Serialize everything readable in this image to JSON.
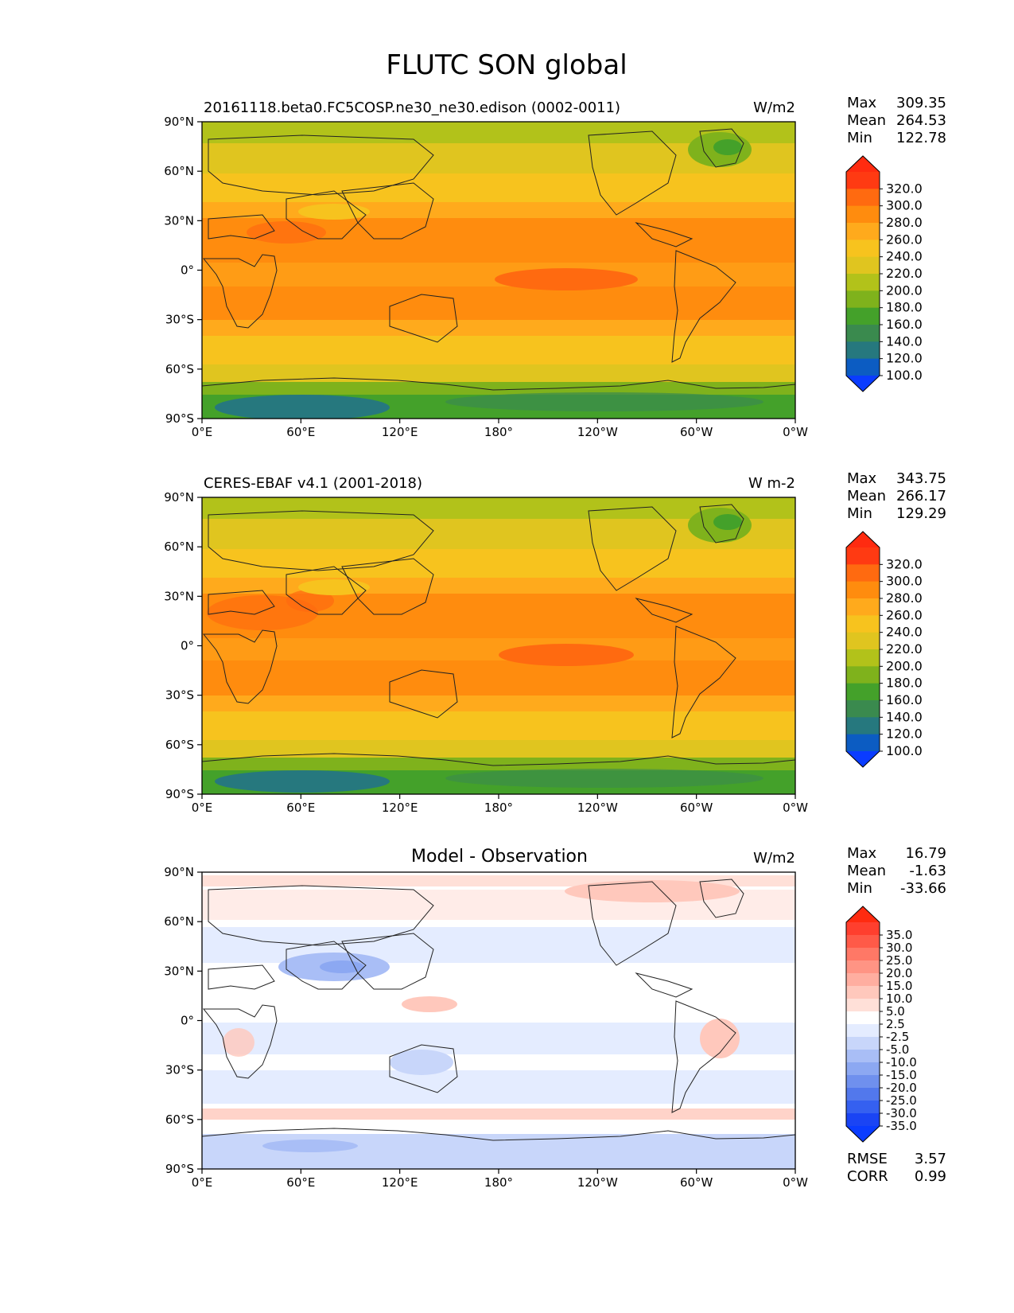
{
  "figure_title": "FLUTC SON global",
  "lat_ticks": [
    "90°N",
    "60°N",
    "30°N",
    "0°",
    "30°S",
    "60°S",
    "90°S"
  ],
  "lon_ticks": [
    "0°E",
    "60°E",
    "120°E",
    "180°",
    "120°W",
    "60°W",
    "0°W"
  ],
  "panels": [
    {
      "title_left": "20161118.beta0.FC5COSP.ne30_ne30.edison (0002-0011)",
      "title_center": "",
      "units": "W/m2",
      "stats": {
        "labels": [
          "Max",
          "Mean",
          "Min"
        ],
        "values": [
          "309.35",
          "264.53",
          "122.78"
        ]
      },
      "colorbar": {
        "labels": [
          "320.0",
          "300.0",
          "280.0",
          "260.0",
          "240.0",
          "220.0",
          "200.0",
          "180.0",
          "160.0",
          "140.0",
          "120.0",
          "100.0"
        ],
        "colors": [
          "#ff3a12",
          "#ff6a10",
          "#ff8c0e",
          "#ffaa1c",
          "#f7c31e",
          "#e0c51f",
          "#b2c21a",
          "#7fb21c",
          "#44a12a",
          "#3a8a4e",
          "#26787e",
          "#0c5cc2"
        ],
        "overflow_top": "#ff2b10",
        "underflow_bottom": "#0a3cff"
      }
    },
    {
      "title_left": "CERES-EBAF v4.1 (2001-2018)",
      "title_center": "",
      "units": "W m-2",
      "stats": {
        "labels": [
          "Max",
          "Mean",
          "Min"
        ],
        "values": [
          "343.75",
          "266.17",
          "129.29"
        ]
      },
      "colorbar": {
        "labels": [
          "320.0",
          "300.0",
          "280.0",
          "260.0",
          "240.0",
          "220.0",
          "200.0",
          "180.0",
          "160.0",
          "140.0",
          "120.0",
          "100.0"
        ],
        "colors": [
          "#ff3a12",
          "#ff6a10",
          "#ff8c0e",
          "#ffaa1c",
          "#f7c31e",
          "#e0c51f",
          "#b2c21a",
          "#7fb21c",
          "#44a12a",
          "#3a8a4e",
          "#26787e",
          "#0c5cc2"
        ],
        "overflow_top": "#ff2b10",
        "underflow_bottom": "#0a3cff"
      }
    },
    {
      "title_left": "",
      "title_center": "Model - Observation",
      "units": "W/m2",
      "stats": {
        "labels": [
          "Max",
          "Mean",
          "Min"
        ],
        "values": [
          "16.79",
          "-1.63",
          "-33.66"
        ]
      },
      "colorbar": {
        "labels": [
          "35.0",
          "30.0",
          "25.0",
          "20.0",
          "15.0",
          "10.0",
          "5.0",
          "2.5",
          "-2.5",
          "-5.0",
          "-10.0",
          "-15.0",
          "-20.0",
          "-25.0",
          "-30.0",
          "-35.0"
        ],
        "colors": [
          "#ff3f2e",
          "#ff5a48",
          "#ff7866",
          "#ff9484",
          "#ffaea0",
          "#ffc8bc",
          "#ffe0d8",
          "#ffffff",
          "#e4ecff",
          "#c8d6fa",
          "#a9bef6",
          "#8ca8f2",
          "#6f90ee",
          "#5278ec",
          "#3560f0",
          "#1a44f4"
        ],
        "overflow_top": "#ff2b10",
        "underflow_bottom": "#0a3cff"
      },
      "metrics": {
        "labels": [
          "RMSE",
          "CORR"
        ],
        "values": [
          "3.57",
          "0.99"
        ]
      }
    }
  ],
  "chart_data": [
    {
      "type": "heatmap",
      "title": "20161118.beta0.FC5COSP.ne30_ne30.edison (0002-0011)",
      "variable": "FLUTC",
      "season": "SON",
      "units": "W/m2",
      "x": {
        "range": [
          0,
          360
        ],
        "ticks": [
          "0°E",
          "60°E",
          "120°E",
          "180°",
          "120°W",
          "60°W",
          "0°W"
        ]
      },
      "y": {
        "range": [
          -90,
          90
        ],
        "ticks": [
          "90°N",
          "60°N",
          "30°N",
          "0°",
          "30°S",
          "60°S",
          "90°S"
        ]
      },
      "contour_levels": [
        100,
        120,
        140,
        160,
        180,
        200,
        220,
        240,
        260,
        280,
        300,
        320
      ],
      "stats": {
        "max": 309.35,
        "mean": 264.53,
        "min": 122.78
      },
      "zonal_profile": {
        "lat": [
          90,
          75,
          60,
          45,
          30,
          15,
          0,
          -15,
          -30,
          -45,
          -60,
          -75,
          -90
        ],
        "value": [
          195,
          215,
          235,
          255,
          280,
          290,
          285,
          290,
          275,
          250,
          225,
          170,
          150
        ]
      },
      "colormap": "blue-green-yellow-orange-red",
      "legend": "right"
    },
    {
      "type": "heatmap",
      "title": "CERES-EBAF v4.1 (2001-2018)",
      "variable": "FLUTC",
      "season": "SON",
      "units": "W m-2",
      "x": {
        "range": [
          0,
          360
        ],
        "ticks": [
          "0°E",
          "60°E",
          "120°E",
          "180°",
          "120°W",
          "60°W",
          "0°W"
        ]
      },
      "y": {
        "range": [
          -90,
          90
        ],
        "ticks": [
          "90°N",
          "60°N",
          "30°N",
          "0°",
          "30°S",
          "60°S",
          "90°S"
        ]
      },
      "contour_levels": [
        100,
        120,
        140,
        160,
        180,
        200,
        220,
        240,
        260,
        280,
        300,
        320
      ],
      "stats": {
        "max": 343.75,
        "mean": 266.17,
        "min": 129.29
      },
      "zonal_profile": {
        "lat": [
          90,
          75,
          60,
          45,
          30,
          15,
          0,
          -15,
          -30,
          -45,
          -60,
          -75,
          -90
        ],
        "value": [
          195,
          215,
          238,
          258,
          282,
          292,
          288,
          292,
          278,
          252,
          228,
          172,
          150
        ]
      },
      "colormap": "blue-green-yellow-orange-red",
      "legend": "right"
    },
    {
      "type": "heatmap",
      "title": "Model - Observation",
      "variable": "FLUTC difference",
      "season": "SON",
      "units": "W/m2",
      "x": {
        "range": [
          0,
          360
        ],
        "ticks": [
          "0°E",
          "60°E",
          "120°E",
          "180°",
          "120°W",
          "60°W",
          "0°W"
        ]
      },
      "y": {
        "range": [
          -90,
          90
        ],
        "ticks": [
          "90°N",
          "60°N",
          "30°N",
          "0°",
          "30°S",
          "60°S",
          "90°S"
        ]
      },
      "contour_levels": [
        -35,
        -30,
        -25,
        -20,
        -15,
        -10,
        -5,
        -2.5,
        2.5,
        5,
        10,
        15,
        20,
        25,
        30,
        35
      ],
      "stats": {
        "max": 16.79,
        "mean": -1.63,
        "min": -33.66,
        "rmse": 3.57,
        "corr": 0.99
      },
      "zonal_profile": {
        "lat": [
          90,
          75,
          60,
          45,
          30,
          15,
          0,
          -15,
          -30,
          -45,
          -60,
          -75,
          -90
        ],
        "value": [
          3,
          2,
          -1,
          -3,
          -4,
          -2,
          1,
          -3,
          -4,
          -3,
          3,
          -5,
          -4
        ]
      },
      "colormap": "blue-white-red",
      "legend": "right"
    }
  ]
}
